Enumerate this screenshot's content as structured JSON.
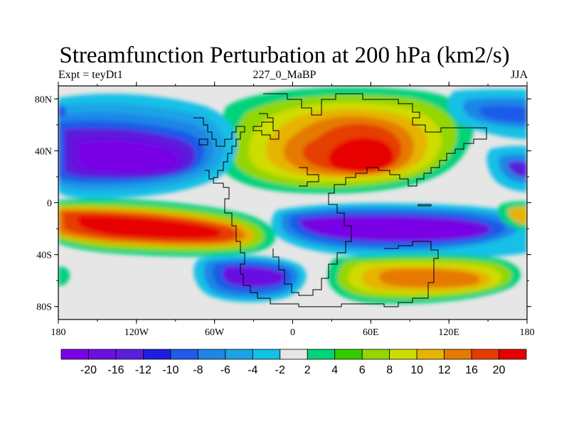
{
  "title": "Streamfunction Perturbation at 200 hPa (km2/s)",
  "left_label": "Expt = teyDt1",
  "center_label": "227_0_MaBP",
  "right_label": "JJA",
  "lat_ticks": [
    "80N",
    "40N",
    "0",
    "40S",
    "80S"
  ],
  "lon_ticks": [
    "180",
    "120W",
    "60W",
    "0",
    "60E",
    "120E",
    "180"
  ],
  "colorbar": {
    "colors": [
      "#7a00e6",
      "#6a0fe0",
      "#5a1edc",
      "#1d1ee0",
      "#1f5ae8",
      "#1f86e6",
      "#1aa3e6",
      "#13c0e6",
      "#e6e6e6",
      "#00d37a",
      "#33cc00",
      "#93d600",
      "#cfdc00",
      "#e6b400",
      "#e67a00",
      "#e63c00",
      "#e60000"
    ],
    "labels": [
      "-20",
      "-16",
      "-12",
      "-10",
      "-8",
      "-6",
      "-4",
      "-2",
      "2",
      "4",
      "6",
      "8",
      "10",
      "12",
      "16",
      "20"
    ]
  },
  "map_data": {
    "projection": "cylindrical equidistant",
    "lon_range": [
      -180,
      180
    ],
    "lat_range": [
      -90,
      90
    ],
    "centers": [
      {
        "lon": -120,
        "lat": 40,
        "value": -20
      },
      {
        "lon": -130,
        "lat": -22,
        "value": 20
      },
      {
        "lon": -40,
        "lat": -55,
        "value": -16
      },
      {
        "lon": 50,
        "lat": 45,
        "value": 20
      },
      {
        "lon": 60,
        "lat": -20,
        "value": -20
      },
      {
        "lon": 95,
        "lat": -52,
        "value": 16
      },
      {
        "lon": 165,
        "lat": 70,
        "value": -12
      },
      {
        "lon": 180,
        "lat": 30,
        "value": -12
      },
      {
        "lon": 175,
        "lat": -15,
        "value": 6
      }
    ]
  }
}
